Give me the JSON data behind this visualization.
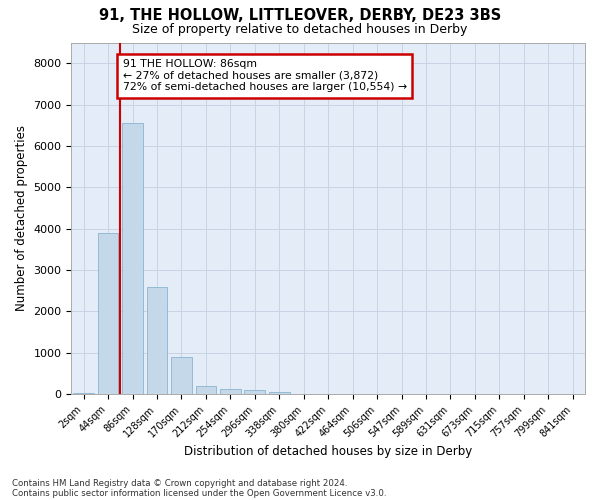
{
  "title1": "91, THE HOLLOW, LITTLEOVER, DERBY, DE23 3BS",
  "title2": "Size of property relative to detached houses in Derby",
  "xlabel": "Distribution of detached houses by size in Derby",
  "ylabel": "Number of detached properties",
  "footer1": "Contains HM Land Registry data © Crown copyright and database right 2024.",
  "footer2": "Contains public sector information licensed under the Open Government Licence v3.0.",
  "bar_labels": [
    "2sqm",
    "44sqm",
    "86sqm",
    "128sqm",
    "170sqm",
    "212sqm",
    "254sqm",
    "296sqm",
    "338sqm",
    "380sqm",
    "422sqm",
    "464sqm",
    "506sqm",
    "547sqm",
    "589sqm",
    "631sqm",
    "673sqm",
    "715sqm",
    "757sqm",
    "799sqm",
    "841sqm"
  ],
  "bar_values": [
    30,
    3900,
    6550,
    2600,
    900,
    200,
    130,
    90,
    55,
    0,
    0,
    0,
    0,
    0,
    0,
    0,
    0,
    0,
    0,
    0,
    0
  ],
  "bar_color": "#c5d8ea",
  "bar_edge_color": "#8ab4d0",
  "highlight_bar_index": 2,
  "annotation_text": "91 THE HOLLOW: 86sqm\n← 27% of detached houses are smaller (3,872)\n72% of semi-detached houses are larger (10,554) →",
  "annotation_box_color": "#ffffff",
  "annotation_box_edge": "#cc0000",
  "red_line_color": "#cc0000",
  "ylim": [
    0,
    8500
  ],
  "yticks": [
    0,
    1000,
    2000,
    3000,
    4000,
    5000,
    6000,
    7000,
    8000
  ],
  "grid_color": "#c8d4e4",
  "background_color": "#e4ecf7"
}
